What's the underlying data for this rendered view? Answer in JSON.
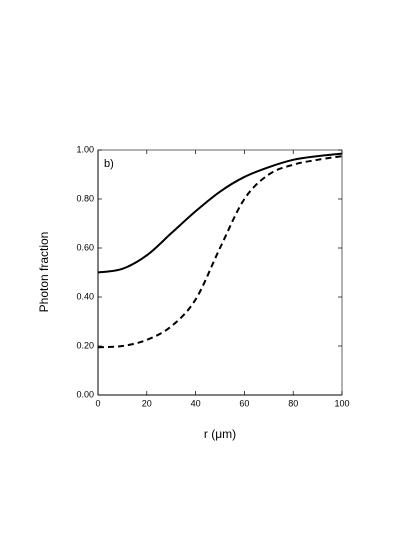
{
  "chart_data": {
    "type": "line",
    "annotation": "b)",
    "x_label": "r (μm)",
    "y_label": "Photon fraction",
    "x": [
      0,
      10,
      20,
      30,
      40,
      50,
      60,
      70,
      80,
      90,
      100
    ],
    "series": [
      {
        "color": "#000000",
        "line_style": "solid",
        "values": [
          0.5,
          0.515,
          0.57,
          0.66,
          0.75,
          0.83,
          0.89,
          0.93,
          0.96,
          0.975,
          0.985
        ]
      },
      {
        "color": "#000000",
        "line_style": "dashed",
        "values": [
          0.195,
          0.2,
          0.225,
          0.28,
          0.39,
          0.6,
          0.8,
          0.9,
          0.94,
          0.96,
          0.975
        ]
      }
    ],
    "xlim": [
      0,
      100
    ],
    "xticks": [
      0,
      20,
      40,
      60,
      80,
      100
    ],
    "ylim": [
      0,
      1
    ],
    "yticks": [
      {
        "value": 0,
        "label": "0.00"
      },
      {
        "value": 0.2,
        "label": "0.20"
      },
      {
        "value": 0.4,
        "label": "0.40"
      },
      {
        "value": 0.6,
        "label": "0.60"
      },
      {
        "value": 0.8,
        "label": "0.80"
      },
      {
        "value": 1,
        "label": "1.00"
      }
    ],
    "grid": false
  }
}
